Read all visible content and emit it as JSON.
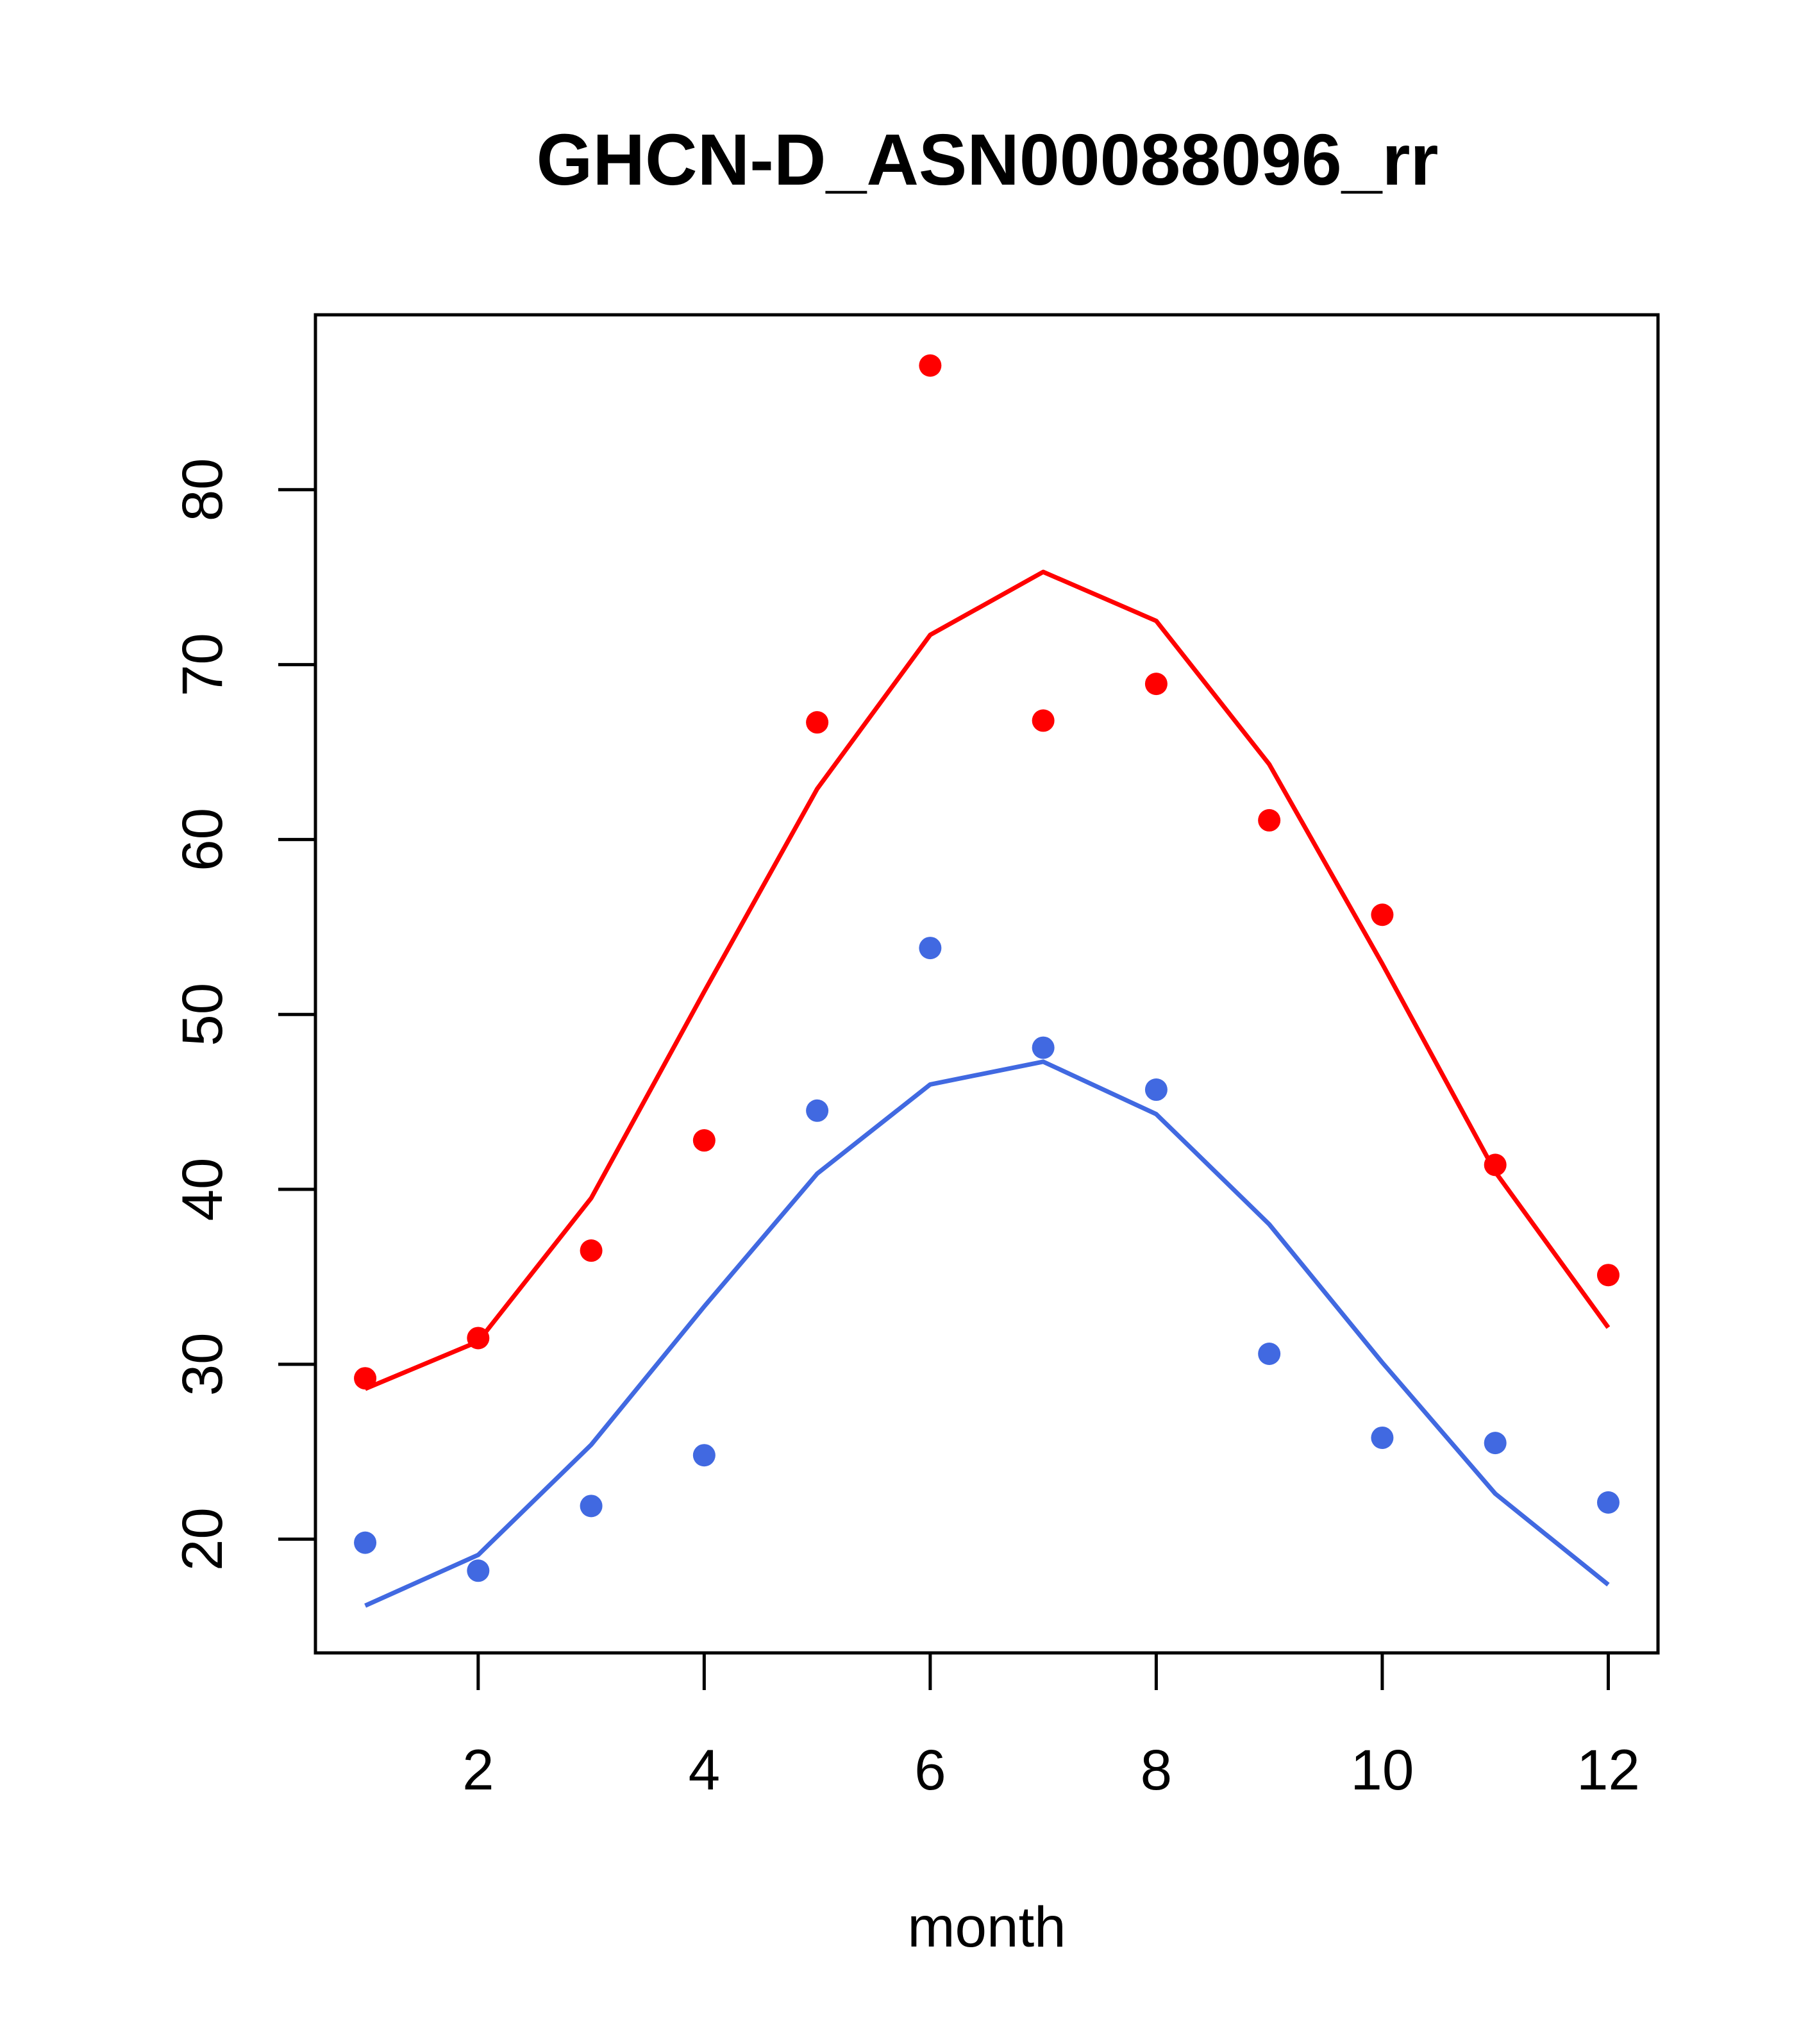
{
  "chart_data": {
    "type": "line",
    "title": "GHCN-D_ASN00088096_rr",
    "xlabel": "month",
    "ylabel": "",
    "xlim": [
      0.56,
      12.44
    ],
    "ylim": [
      13.5,
      90
    ],
    "x_ticks": [
      2,
      4,
      6,
      8,
      10,
      12
    ],
    "y_ticks": [
      20,
      30,
      40,
      50,
      60,
      70,
      80
    ],
    "x_tick_labels": [
      "2",
      "4",
      "6",
      "8",
      "10",
      "12"
    ],
    "y_tick_labels": [
      "20",
      "30",
      "40",
      "50",
      "60",
      "70",
      "80"
    ],
    "x": [
      1,
      2,
      3,
      4,
      5,
      6,
      7,
      8,
      9,
      10,
      11,
      12
    ],
    "series": [
      {
        "color": "#ff0000",
        "points": [
          29.2,
          31.5,
          36.5,
          42.8,
          66.7,
          87.1,
          66.8,
          68.9,
          61.1,
          55.7,
          41.4,
          35.1
        ],
        "line": [
          28.6,
          31.3,
          39.5,
          51.3,
          62.9,
          71.7,
          75.3,
          72.5,
          64.3,
          52.9,
          41.0,
          32.1
        ]
      },
      {
        "color": "#4169e1",
        "points": [
          19.8,
          18.2,
          21.9,
          24.8,
          44.5,
          53.8,
          48.1,
          45.7,
          30.6,
          25.8,
          25.5,
          22.1
        ],
        "line": [
          16.2,
          19.1,
          25.4,
          33.3,
          40.9,
          46.0,
          47.3,
          44.3,
          38.0,
          30.1,
          22.6,
          17.4
        ]
      }
    ],
    "grid": false,
    "legend": "none"
  }
}
